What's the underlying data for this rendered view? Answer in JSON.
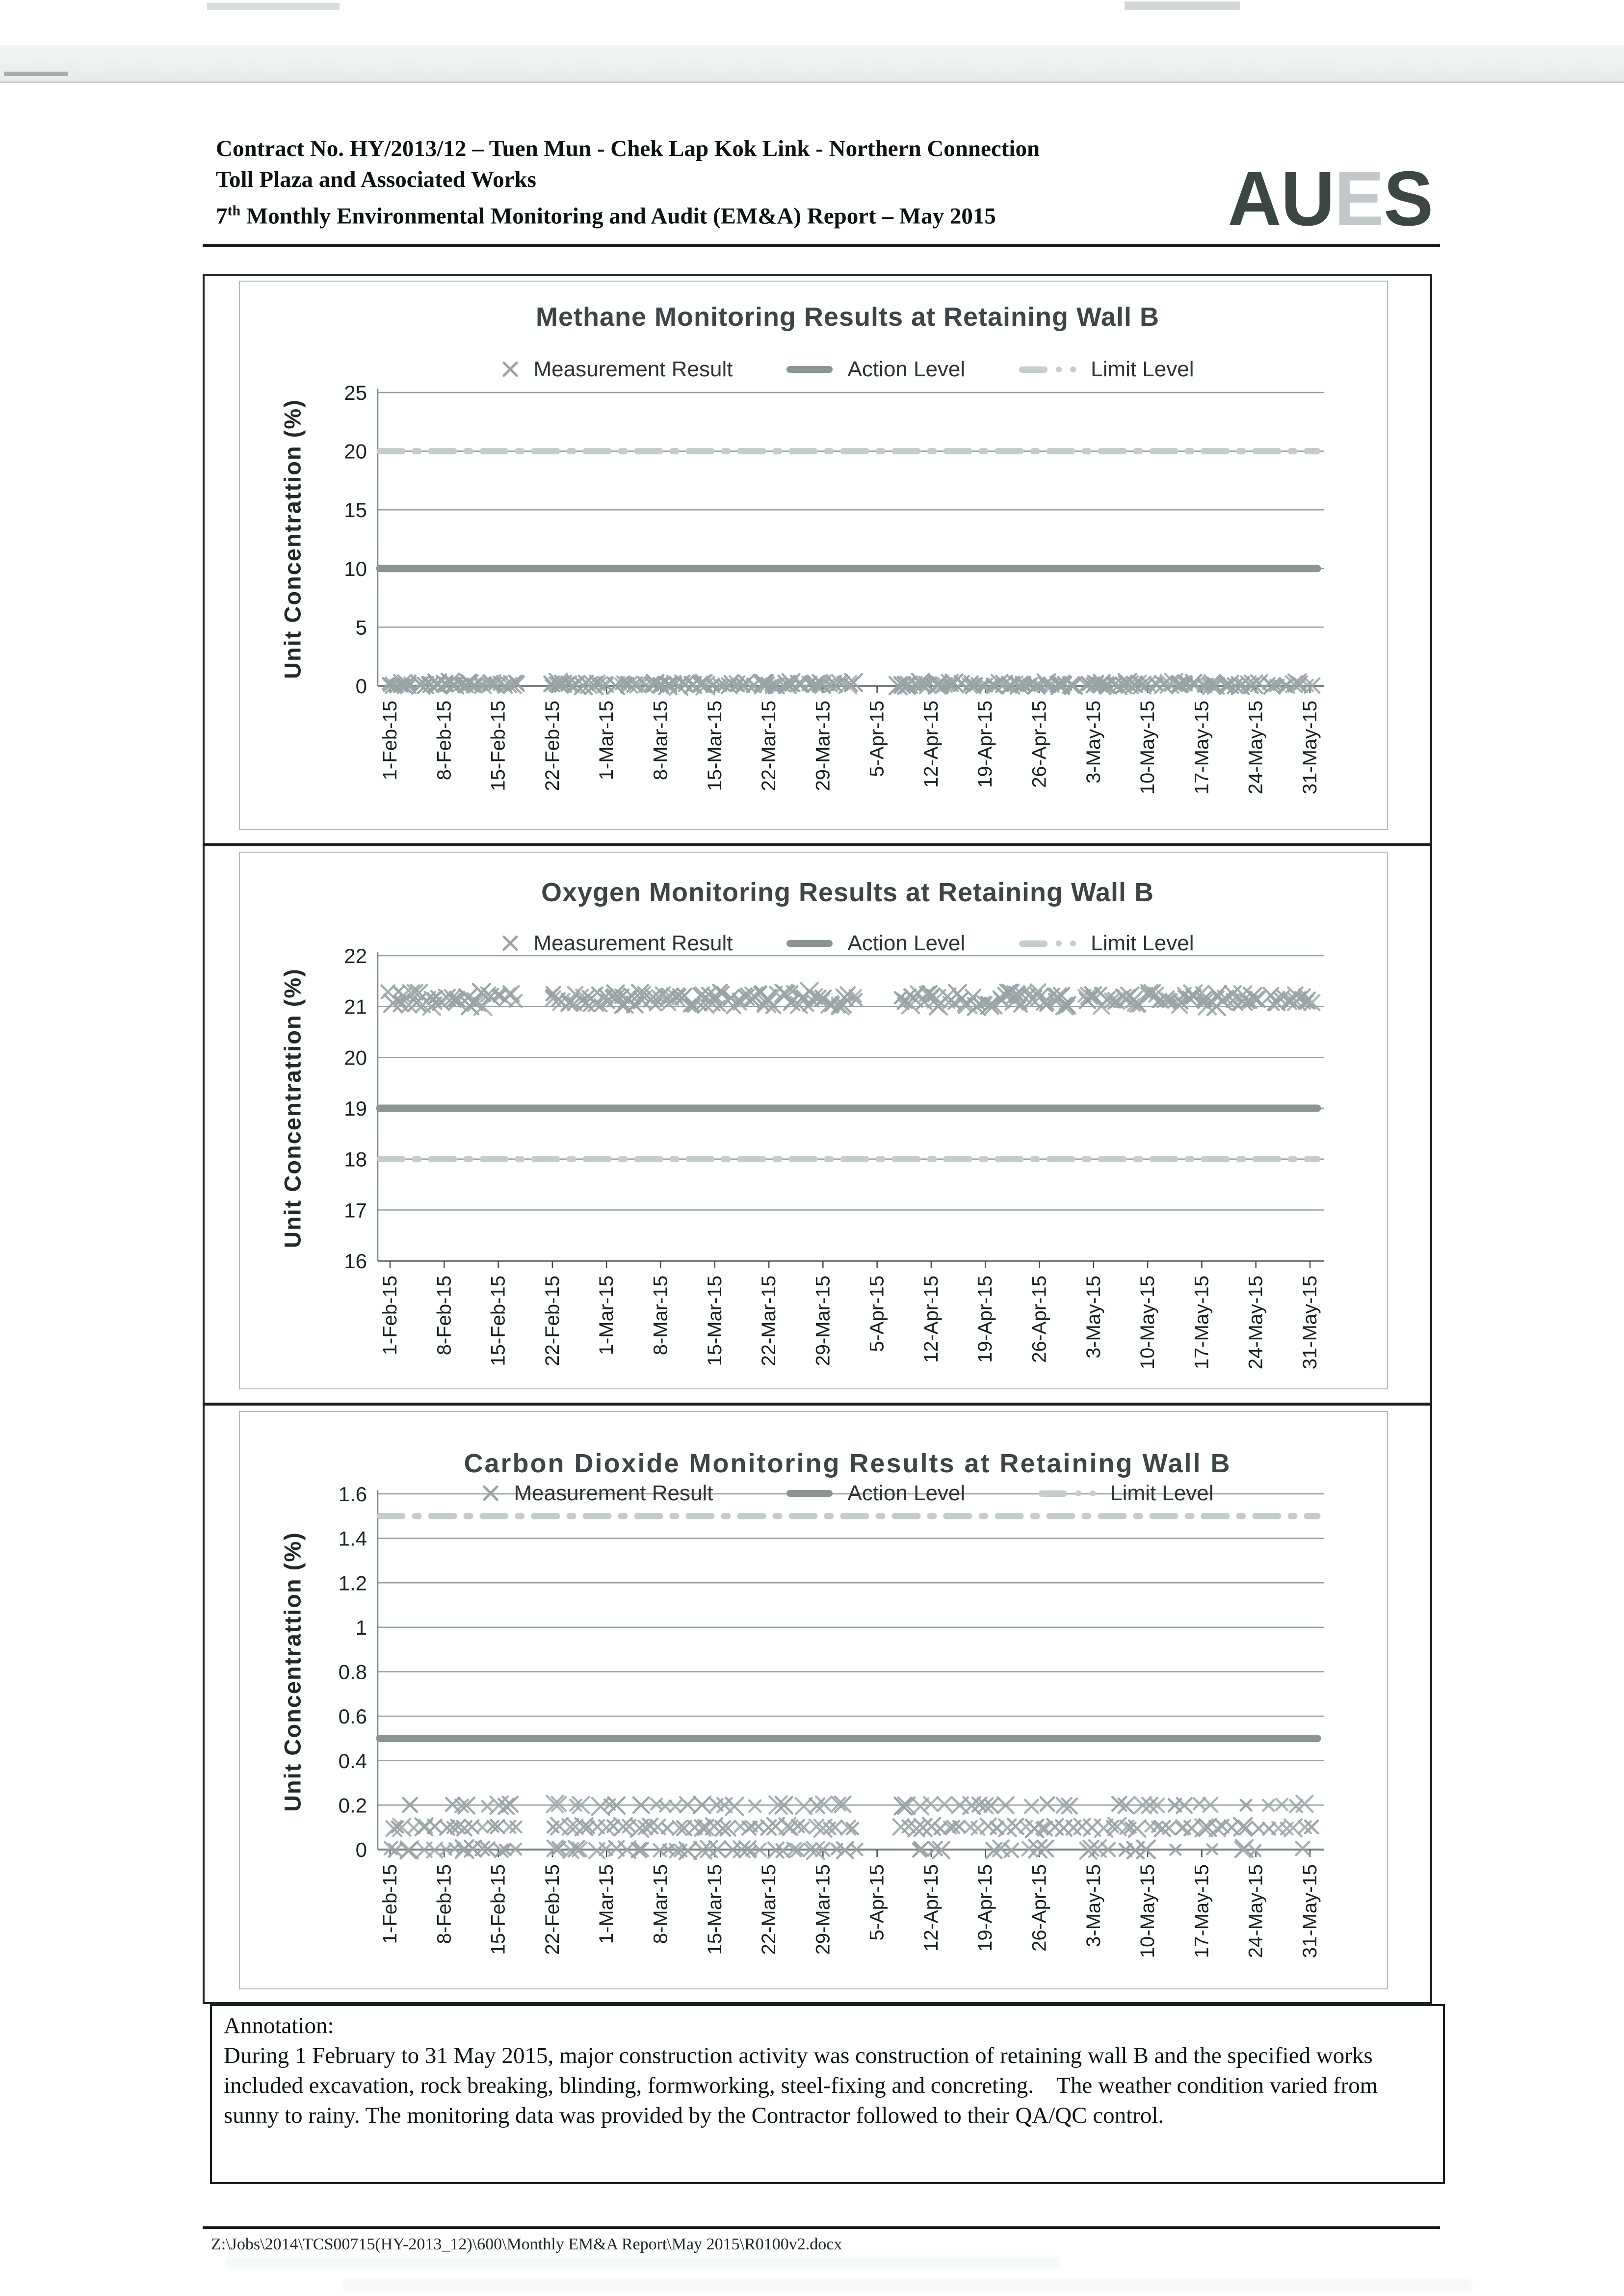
{
  "header": {
    "line1": "Contract No. HY/2013/12 – Tuen Mun - Chek Lap Kok Link - Northern Connection",
    "line2": "Toll Plaza and Associated Works",
    "line3_num": "7",
    "line3_sup": "th",
    "line3_rest": " Monthly Environmental Monitoring and Audit (EM&A) Report – May 2015",
    "logo_letters": [
      "A",
      "U",
      "E",
      "S"
    ]
  },
  "colors": {
    "marker": "#99a3a6",
    "action_line": "#8c9495",
    "limit_line": "#c5cccd",
    "gridline": "#979e9f",
    "axis": "#7a8183",
    "tick": "#43484a",
    "title_text": "#3e4547",
    "logo_dark": "#3c4745",
    "logo_light": "#c2c7c9"
  },
  "x_labels": [
    "1-Feb-15",
    "8-Feb-15",
    "15-Feb-15",
    "22-Feb-15",
    "1-Mar-15",
    "8-Mar-15",
    "15-Mar-15",
    "22-Mar-15",
    "29-Mar-15",
    "5-Apr-15",
    "12-Apr-15",
    "19-Apr-15",
    "26-Apr-15",
    "3-May-15",
    "10-May-15",
    "17-May-15",
    "24-May-15",
    "31-May-15"
  ],
  "tick_interval_days": 7,
  "x_span_days": 119,
  "chart_data": [
    {
      "type": "scatter",
      "title": "Methane Monitoring Results at Retaining Wall B",
      "ylabel": "Unit Concentrattion (%)",
      "ylim": [
        0,
        25
      ],
      "yticks": [
        0,
        5,
        10,
        15,
        20,
        25
      ],
      "ytick_labels": [
        "0",
        "5",
        "10",
        "15",
        "20",
        "25"
      ],
      "action_level": 10,
      "limit_level": 20,
      "legend": {
        "measurement": "Measurement Result",
        "action": "Action Level",
        "limit": "Limit Level"
      },
      "series": {
        "kind": "jitter",
        "base": 0.1,
        "spread": 0.2,
        "per_day": 2,
        "summary": "daily methane readings ~0-0.5%, far below Action 10% and Limit 20%"
      },
      "no_data_days": [
        [
          17,
          20
        ],
        [
          61,
          65
        ],
        [
          89,
          89
        ],
        [
          113,
          113
        ]
      ]
    },
    {
      "type": "scatter",
      "title": "Oxygen Monitoring Results at Retaining Wall B",
      "ylabel": "Unit Concentrattion (%)",
      "ylim": [
        16,
        22
      ],
      "yticks": [
        16,
        17,
        18,
        19,
        20,
        21,
        22
      ],
      "ytick_labels": [
        "16",
        "17",
        "18",
        "19",
        "20",
        "21",
        "22"
      ],
      "action_level": 19,
      "limit_level": 18,
      "legend": {
        "measurement": "Measurement Result",
        "action": "Action Level",
        "limit": "Limit Level"
      },
      "series": {
        "kind": "jitter",
        "base": 21.15,
        "spread": 0.15,
        "per_day": 2,
        "summary": "daily oxygen readings ~20.9-21.3%, above Action 19% and Limit 18%"
      },
      "no_data_days": [
        [
          17,
          20
        ],
        [
          61,
          65
        ],
        [
          89,
          89
        ],
        [
          113,
          113
        ]
      ]
    },
    {
      "type": "scatter",
      "title": "Carbon Dioxide Monitoring Results at Retaining Wall B",
      "ylabel": "Unit Concentrattion (%)",
      "ylim": [
        0,
        1.6
      ],
      "yticks": [
        0,
        0.2,
        0.4,
        0.6,
        0.8,
        1,
        1.2,
        1.4,
        1.6
      ],
      "ytick_labels": [
        "0",
        "0.2",
        "0.4",
        "0.6",
        "0.8",
        "1",
        "1.2",
        "1.4",
        "1.6"
      ],
      "action_level": 0.5,
      "limit_level": 1.5,
      "legend": {
        "measurement": "Measurement Result",
        "action": "Action Level",
        "limit": "Limit Level"
      },
      "series": {
        "kind": "discrete",
        "split_day": 63,
        "rows": [
          {
            "value": 0.2,
            "p_early": 0.5,
            "p_late": 0.55
          },
          {
            "value": 0.1,
            "p_early": 1.0,
            "p_late": 1.0
          },
          {
            "value": 0.0,
            "p_early": 0.85,
            "p_late": 0.4
          }
        ],
        "summary": "daily CO2 readings of 0, 0.1 or 0.2%, below Action 0.5% and Limit 1.5%"
      },
      "no_data_days": [
        [
          17,
          20
        ],
        [
          61,
          65
        ],
        [
          89,
          89
        ],
        [
          113,
          113
        ]
      ]
    }
  ],
  "annotation": {
    "label": "Annotation:",
    "body": "During 1 February to 31 May 2015, major construction activity was construction of retaining wall B and the specified works included excavation, rock breaking, blinding, formworking, steel-fixing and concreting.    The weather condition varied from sunny to rainy. The monitoring data was provided by the Contractor followed to their QA/QC control."
  },
  "footer": {
    "path": "Z:\\Jobs\\2014\\TCS00715(HY-2013_12)\\600\\Monthly EM&A Report\\May 2015\\R0100v2.docx"
  }
}
